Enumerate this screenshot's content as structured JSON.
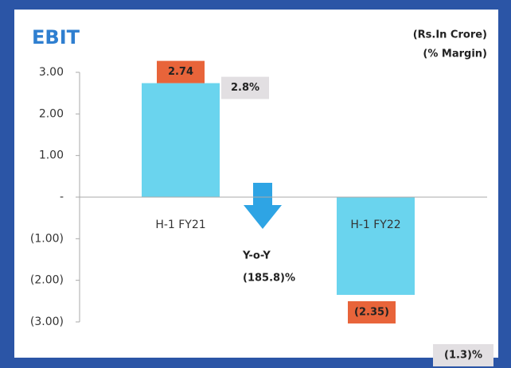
{
  "chart_data": {
    "type": "bar",
    "title": "EBIT",
    "units": [
      "(Rs.In Crore)",
      "(% Margin)"
    ],
    "categories": [
      "H-1 FY21",
      "H-1 FY22"
    ],
    "values": [
      2.74,
      -2.35
    ],
    "value_labels": [
      "2.74",
      "(2.35)"
    ],
    "margin_labels": [
      "2.8%",
      "(1.3)%"
    ],
    "yoy_label": "Y-o-Y",
    "yoy_value": "(185.8)%",
    "color": "#6ad4ee",
    "label_color": "#e8643a",
    "margin_color": "#e2dfe2",
    "ylim": [
      -3,
      3
    ],
    "yticks": [
      {
        "value": 3,
        "label": "3.00"
      },
      {
        "value": 2,
        "label": "2.00"
      },
      {
        "value": 1,
        "label": "1.00"
      },
      {
        "value": 0,
        "label": "-"
      },
      {
        "value": -1,
        "label": "(1.00)"
      },
      {
        "value": -2,
        "label": "(2.00)"
      },
      {
        "value": -3,
        "label": "(3.00)"
      }
    ],
    "grid": false
  }
}
